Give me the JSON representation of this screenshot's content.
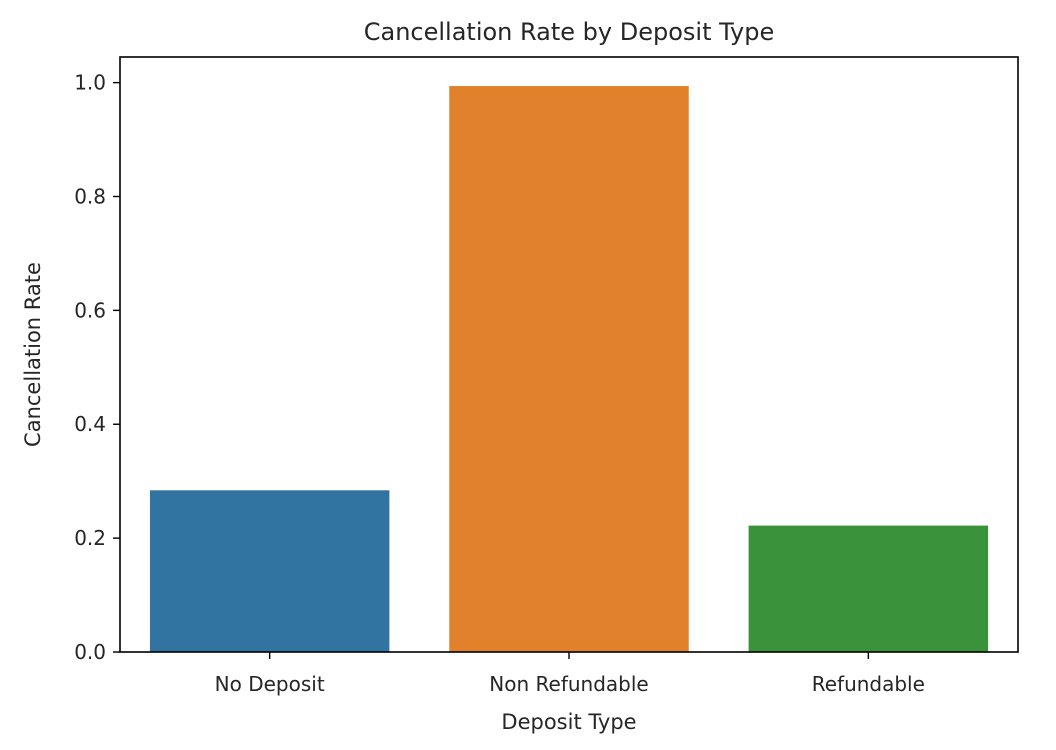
{
  "chart_data": {
    "type": "bar",
    "title": "Cancellation Rate by Deposit Type",
    "xlabel": "Deposit Type",
    "ylabel": "Cancellation Rate",
    "categories": [
      "No Deposit",
      "Non Refundable",
      "Refundable"
    ],
    "values": [
      0.284,
      0.994,
      0.222
    ],
    "colors": [
      "#3274a1",
      "#e1812c",
      "#3a923a"
    ],
    "ylim": [
      0,
      1.045
    ],
    "yticks": [
      0.0,
      0.2,
      0.4,
      0.6,
      0.8,
      1.0
    ],
    "ytick_labels": [
      "0.0",
      "0.2",
      "0.4",
      "0.6",
      "0.8",
      "1.0"
    ],
    "grid": false,
    "legend": "none"
  }
}
